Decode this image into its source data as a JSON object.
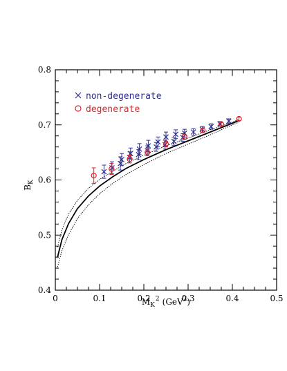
{
  "chart_data": {
    "type": "scatter",
    "xlabel": "M_K^2 (GeV^2)",
    "xlabel_parts": {
      "main": "M",
      "sub": "K",
      "sup": "2",
      "unit_prefix": "(GeV",
      "unit_sup": "2",
      "unit_suffix": ")"
    },
    "ylabel": "B_K",
    "ylabel_parts": {
      "main": "B",
      "sub": "K"
    },
    "xlim": [
      0,
      0.5
    ],
    "ylim": [
      0.4,
      0.8
    ],
    "xticks": [
      "0",
      "0.1",
      "0.2",
      "0.3",
      "0.4",
      "0.5"
    ],
    "yticks": [
      "0.4",
      "0.5",
      "0.6",
      "0.7",
      "0.8"
    ],
    "legend_position": "top-left",
    "series": [
      {
        "name": "non-degenerate",
        "marker": "x",
        "color": "#2e2e8f",
        "points": [
          {
            "x": 0.11,
            "y": 0.615,
            "err": 0.012
          },
          {
            "x": 0.128,
            "y": 0.622,
            "err": 0.011
          },
          {
            "x": 0.147,
            "y": 0.63,
            "err": 0.012
          },
          {
            "x": 0.15,
            "y": 0.637,
            "err": 0.011
          },
          {
            "x": 0.168,
            "y": 0.641,
            "err": 0.01
          },
          {
            "x": 0.17,
            "y": 0.648,
            "err": 0.01
          },
          {
            "x": 0.188,
            "y": 0.646,
            "err": 0.009
          },
          {
            "x": 0.19,
            "y": 0.656,
            "err": 0.01
          },
          {
            "x": 0.208,
            "y": 0.653,
            "err": 0.009
          },
          {
            "x": 0.21,
            "y": 0.662,
            "err": 0.01
          },
          {
            "x": 0.228,
            "y": 0.66,
            "err": 0.008
          },
          {
            "x": 0.232,
            "y": 0.669,
            "err": 0.009
          },
          {
            "x": 0.248,
            "y": 0.664,
            "err": 0.008
          },
          {
            "x": 0.25,
            "y": 0.678,
            "err": 0.009
          },
          {
            "x": 0.268,
            "y": 0.67,
            "err": 0.007
          },
          {
            "x": 0.272,
            "y": 0.683,
            "err": 0.008
          },
          {
            "x": 0.288,
            "y": 0.677,
            "err": 0.007
          },
          {
            "x": 0.292,
            "y": 0.685,
            "err": 0.007
          },
          {
            "x": 0.312,
            "y": 0.687,
            "err": 0.006
          },
          {
            "x": 0.332,
            "y": 0.692,
            "err": 0.005
          },
          {
            "x": 0.352,
            "y": 0.697,
            "err": 0.005
          },
          {
            "x": 0.372,
            "y": 0.702,
            "err": 0.004
          },
          {
            "x": 0.392,
            "y": 0.707,
            "err": 0.004
          }
        ]
      },
      {
        "name": "degenerate",
        "marker": "o",
        "color": "#e0232b",
        "points": [
          {
            "x": 0.087,
            "y": 0.608,
            "err": 0.014
          },
          {
            "x": 0.127,
            "y": 0.62,
            "err": 0.01
          },
          {
            "x": 0.168,
            "y": 0.638,
            "err": 0.007
          },
          {
            "x": 0.208,
            "y": 0.65,
            "err": 0.006
          },
          {
            "x": 0.25,
            "y": 0.665,
            "err": 0.005
          },
          {
            "x": 0.292,
            "y": 0.678,
            "err": 0.004
          },
          {
            "x": 0.333,
            "y": 0.69,
            "err": 0.003
          },
          {
            "x": 0.375,
            "y": 0.701,
            "err": 0.003
          },
          {
            "x": 0.415,
            "y": 0.711,
            "err": 0.003
          }
        ]
      }
    ],
    "fit": {
      "style": "solid-with-dotted-error-band",
      "color": "#000000",
      "central": [
        {
          "x": 0.005,
          "y": 0.46
        },
        {
          "x": 0.015,
          "y": 0.492
        },
        {
          "x": 0.03,
          "y": 0.521
        },
        {
          "x": 0.05,
          "y": 0.548
        },
        {
          "x": 0.075,
          "y": 0.571
        },
        {
          "x": 0.1,
          "y": 0.589
        },
        {
          "x": 0.13,
          "y": 0.606
        },
        {
          "x": 0.16,
          "y": 0.621
        },
        {
          "x": 0.2,
          "y": 0.637
        },
        {
          "x": 0.25,
          "y": 0.655
        },
        {
          "x": 0.3,
          "y": 0.671
        },
        {
          "x": 0.35,
          "y": 0.687
        },
        {
          "x": 0.4,
          "y": 0.703
        },
        {
          "x": 0.415,
          "y": 0.708
        }
      ],
      "upper": [
        {
          "x": 0.005,
          "y": 0.478
        },
        {
          "x": 0.015,
          "y": 0.51
        },
        {
          "x": 0.03,
          "y": 0.538
        },
        {
          "x": 0.05,
          "y": 0.563
        },
        {
          "x": 0.075,
          "y": 0.585
        },
        {
          "x": 0.1,
          "y": 0.601
        },
        {
          "x": 0.13,
          "y": 0.616
        },
        {
          "x": 0.16,
          "y": 0.63
        },
        {
          "x": 0.2,
          "y": 0.645
        },
        {
          "x": 0.25,
          "y": 0.662
        },
        {
          "x": 0.3,
          "y": 0.676
        },
        {
          "x": 0.35,
          "y": 0.691
        },
        {
          "x": 0.4,
          "y": 0.705
        },
        {
          "x": 0.415,
          "y": 0.71
        }
      ],
      "lower": [
        {
          "x": 0.005,
          "y": 0.442
        },
        {
          "x": 0.015,
          "y": 0.472
        },
        {
          "x": 0.03,
          "y": 0.501
        },
        {
          "x": 0.05,
          "y": 0.53
        },
        {
          "x": 0.075,
          "y": 0.555
        },
        {
          "x": 0.1,
          "y": 0.575
        },
        {
          "x": 0.13,
          "y": 0.594
        },
        {
          "x": 0.16,
          "y": 0.61
        },
        {
          "x": 0.2,
          "y": 0.628
        },
        {
          "x": 0.25,
          "y": 0.648
        },
        {
          "x": 0.3,
          "y": 0.665
        },
        {
          "x": 0.35,
          "y": 0.682
        },
        {
          "x": 0.4,
          "y": 0.7
        },
        {
          "x": 0.415,
          "y": 0.705
        }
      ]
    }
  }
}
